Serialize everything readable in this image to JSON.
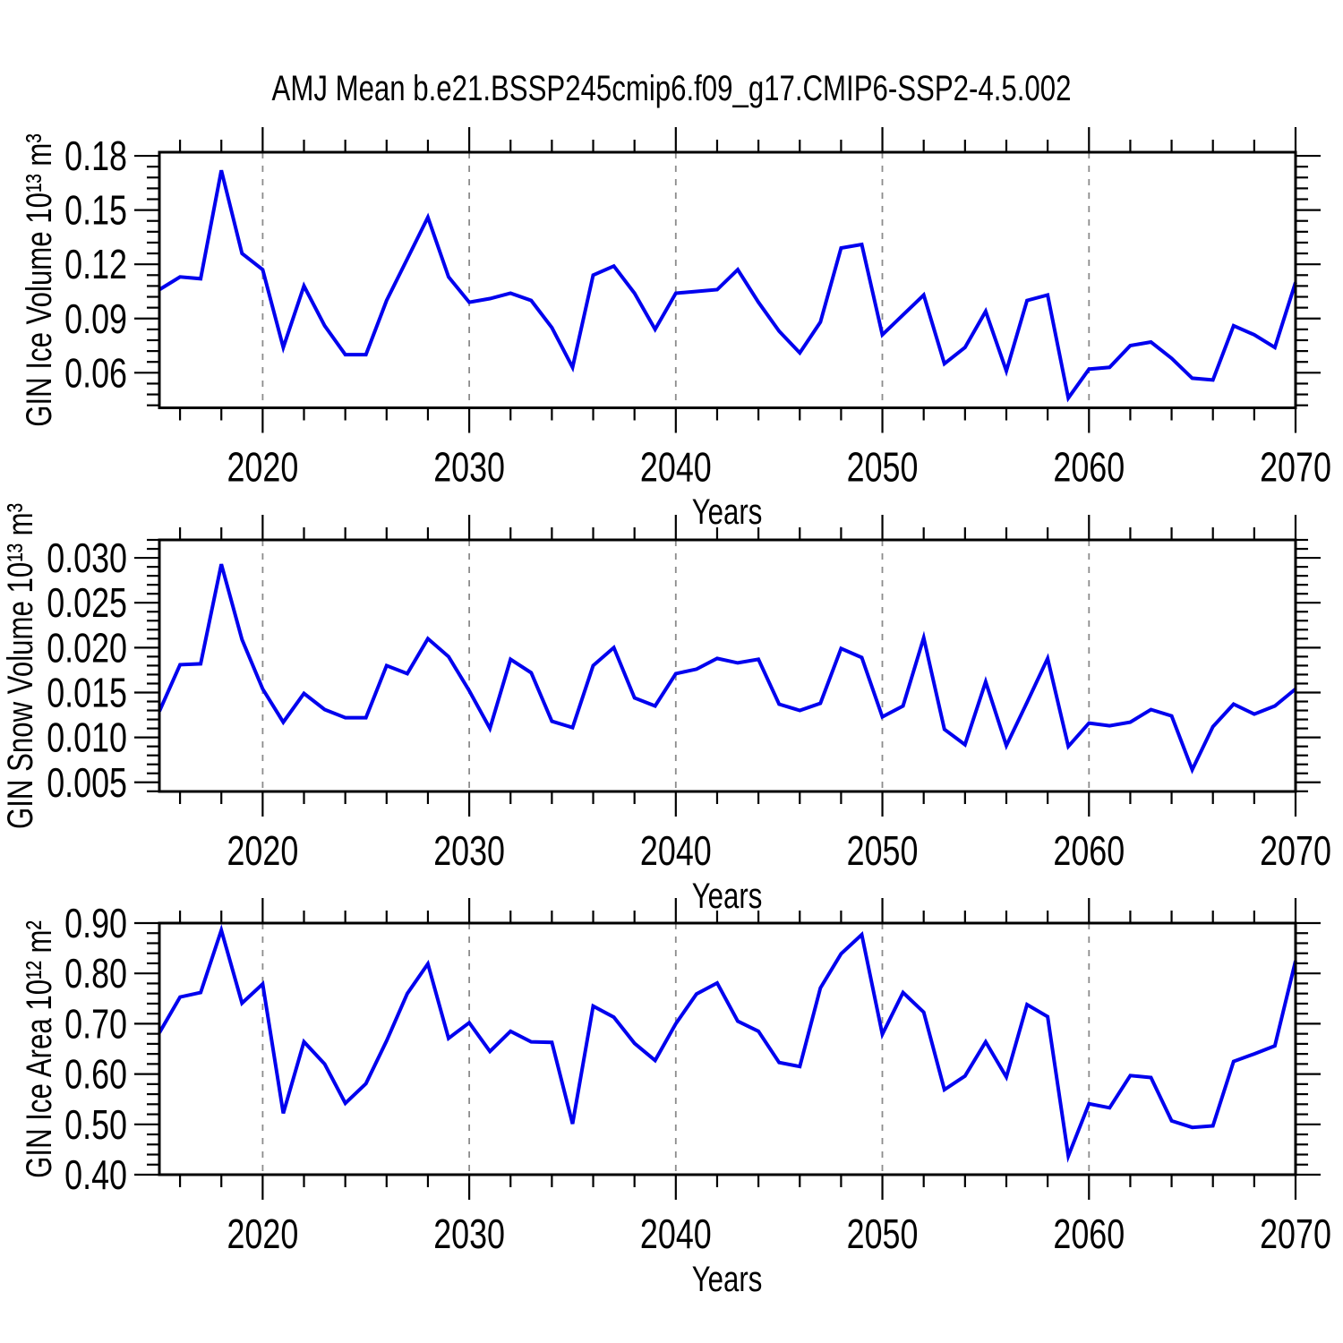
{
  "title": "AMJ Mean b.e21.BSSP245cmip6.f09_g17.CMIP6-SSP2-4.5.002",
  "style": {
    "line_color": "#0000EE",
    "grid_color": "#8c8c8c",
    "frame_color": "#000000",
    "background": "#ffffff"
  },
  "chart_data": [
    {
      "type": "line",
      "title": "AMJ Mean b.e21.BSSP245cmip6.f09_g17.CMIP6-SSP2-4.5.002",
      "ylabel": "GIN Ice Volume 10¹³ m³",
      "xlabel": "Years",
      "xlim": [
        2015,
        2070
      ],
      "ylim": [
        0.0406,
        0.182
      ],
      "grid": "vertical-dashed",
      "legend": "none",
      "gridlines_x": [
        2020,
        2030,
        2040,
        2050,
        2060
      ],
      "xticks": {
        "minor_step": 2,
        "major": [
          {
            "v": 2020,
            "label": "2020"
          },
          {
            "v": 2030,
            "label": "2030"
          },
          {
            "v": 2040,
            "label": "2040"
          },
          {
            "v": 2050,
            "label": "2050"
          },
          {
            "v": 2060,
            "label": "2060"
          },
          {
            "v": 2070,
            "label": "2070"
          }
        ]
      },
      "yticks": {
        "minor_step": 0.006,
        "major": [
          {
            "v": 0.06,
            "label": "0.06"
          },
          {
            "v": 0.09,
            "label": "0.09"
          },
          {
            "v": 0.12,
            "label": "0.12"
          },
          {
            "v": 0.15,
            "label": "0.15"
          },
          {
            "v": 0.18,
            "label": "0.18"
          }
        ]
      },
      "x": [
        2015,
        2016,
        2017,
        2018,
        2019,
        2020,
        2021,
        2022,
        2023,
        2024,
        2025,
        2026,
        2027,
        2028,
        2029,
        2030,
        2031,
        2032,
        2033,
        2034,
        2035,
        2036,
        2037,
        2038,
        2039,
        2040,
        2041,
        2042,
        2043,
        2044,
        2045,
        2046,
        2047,
        2048,
        2049,
        2050,
        2051,
        2052,
        2053,
        2054,
        2055,
        2056,
        2057,
        2058,
        2059,
        2060,
        2061,
        2062,
        2063,
        2064,
        2065,
        2066,
        2067,
        2068,
        2069,
        2070
      ],
      "values": [
        0.106,
        0.113,
        0.112,
        0.172,
        0.126,
        0.117,
        0.074,
        0.108,
        0.086,
        0.07,
        0.07,
        0.1,
        0.123,
        0.146,
        0.113,
        0.099,
        0.101,
        0.104,
        0.1,
        0.085,
        0.063,
        0.114,
        0.119,
        0.104,
        0.084,
        0.104,
        0.105,
        0.106,
        0.117,
        0.099,
        0.083,
        0.071,
        0.088,
        0.129,
        0.131,
        0.081,
        0.092,
        0.103,
        0.065,
        0.074,
        0.094,
        0.061,
        0.1,
        0.103,
        0.046,
        0.062,
        0.063,
        0.075,
        0.077,
        0.068,
        0.057,
        0.056,
        0.086,
        0.081,
        0.074,
        0.11
      ]
    },
    {
      "type": "line",
      "ylabel": "GIN Snow Volume 10¹³ m³",
      "xlabel": "Years",
      "xlim": [
        2015,
        2070
      ],
      "ylim": [
        0.00398,
        0.032
      ],
      "grid": "vertical-dashed",
      "legend": "none",
      "gridlines_x": [
        2020,
        2030,
        2040,
        2050,
        2060
      ],
      "xticks": {
        "minor_step": 2,
        "major": [
          {
            "v": 2020,
            "label": "2020"
          },
          {
            "v": 2030,
            "label": "2030"
          },
          {
            "v": 2040,
            "label": "2040"
          },
          {
            "v": 2050,
            "label": "2050"
          },
          {
            "v": 2060,
            "label": "2060"
          },
          {
            "v": 2070,
            "label": "2070"
          }
        ]
      },
      "yticks": {
        "minor_step": 0.001,
        "major": [
          {
            "v": 0.005,
            "label": "0.005"
          },
          {
            "v": 0.01,
            "label": "0.010"
          },
          {
            "v": 0.015,
            "label": "0.015"
          },
          {
            "v": 0.02,
            "label": "0.020"
          },
          {
            "v": 0.025,
            "label": "0.025"
          },
          {
            "v": 0.03,
            "label": "0.030"
          }
        ]
      },
      "x": [
        2015,
        2016,
        2017,
        2018,
        2019,
        2020,
        2021,
        2022,
        2023,
        2024,
        2025,
        2026,
        2027,
        2028,
        2029,
        2030,
        2031,
        2032,
        2033,
        2034,
        2035,
        2036,
        2037,
        2038,
        2039,
        2040,
        2041,
        2042,
        2043,
        2044,
        2045,
        2046,
        2047,
        2048,
        2049,
        2050,
        2051,
        2052,
        2053,
        2054,
        2055,
        2056,
        2057,
        2058,
        2059,
        2060,
        2061,
        2062,
        2063,
        2064,
        2065,
        2066,
        2067,
        2068,
        2069,
        2070
      ],
      "values": [
        0.0129,
        0.0181,
        0.0182,
        0.0293,
        0.0209,
        0.0154,
        0.0117,
        0.0149,
        0.0131,
        0.0122,
        0.0122,
        0.018,
        0.0171,
        0.021,
        0.019,
        0.0152,
        0.011,
        0.0187,
        0.0172,
        0.0118,
        0.0111,
        0.018,
        0.02,
        0.0144,
        0.0135,
        0.0171,
        0.0176,
        0.0188,
        0.0183,
        0.0187,
        0.0137,
        0.013,
        0.0138,
        0.0199,
        0.0189,
        0.0123,
        0.0135,
        0.0211,
        0.0109,
        0.0092,
        0.0162,
        0.0091,
        0.0139,
        0.0188,
        0.009,
        0.0116,
        0.0113,
        0.0117,
        0.0131,
        0.0124,
        0.0064,
        0.0112,
        0.0137,
        0.0126,
        0.0135,
        0.0154
      ]
    },
    {
      "type": "line",
      "ylabel": "GIN Ice Area 10¹² m²",
      "xlabel": "Years",
      "xlim": [
        2015,
        2070
      ],
      "ylim": [
        0.4,
        0.9
      ],
      "grid": "vertical-dashed",
      "legend": "none",
      "gridlines_x": [
        2020,
        2030,
        2040,
        2050,
        2060
      ],
      "xticks": {
        "minor_step": 2,
        "major": [
          {
            "v": 2020,
            "label": "2020"
          },
          {
            "v": 2030,
            "label": "2030"
          },
          {
            "v": 2040,
            "label": "2040"
          },
          {
            "v": 2050,
            "label": "2050"
          },
          {
            "v": 2060,
            "label": "2060"
          },
          {
            "v": 2070,
            "label": "2070"
          }
        ]
      },
      "yticks": {
        "minor_step": 0.02,
        "major": [
          {
            "v": 0.4,
            "label": "0.40"
          },
          {
            "v": 0.5,
            "label": "0.50"
          },
          {
            "v": 0.6,
            "label": "0.60"
          },
          {
            "v": 0.7,
            "label": "0.70"
          },
          {
            "v": 0.8,
            "label": "0.80"
          },
          {
            "v": 0.9,
            "label": "0.90"
          }
        ]
      },
      "x": [
        2015,
        2016,
        2017,
        2018,
        2019,
        2020,
        2021,
        2022,
        2023,
        2024,
        2025,
        2026,
        2027,
        2028,
        2029,
        2030,
        2031,
        2032,
        2033,
        2034,
        2035,
        2036,
        2037,
        2038,
        2039,
        2040,
        2041,
        2042,
        2043,
        2044,
        2045,
        2046,
        2047,
        2048,
        2049,
        2050,
        2051,
        2052,
        2053,
        2054,
        2055,
        2056,
        2057,
        2058,
        2059,
        2060,
        2061,
        2062,
        2063,
        2064,
        2065,
        2066,
        2067,
        2068,
        2069,
        2070
      ],
      "values": [
        0.682,
        0.753,
        0.762,
        0.886,
        0.741,
        0.779,
        0.522,
        0.664,
        0.62,
        0.542,
        0.581,
        0.666,
        0.76,
        0.819,
        0.671,
        0.702,
        0.645,
        0.685,
        0.664,
        0.663,
        0.501,
        0.735,
        0.713,
        0.661,
        0.627,
        0.7,
        0.759,
        0.781,
        0.705,
        0.685,
        0.623,
        0.615,
        0.771,
        0.839,
        0.877,
        0.679,
        0.762,
        0.723,
        0.569,
        0.596,
        0.664,
        0.594,
        0.738,
        0.714,
        0.437,
        0.541,
        0.533,
        0.597,
        0.593,
        0.507,
        0.494,
        0.497,
        0.625,
        0.64,
        0.656,
        0.825
      ]
    }
  ]
}
